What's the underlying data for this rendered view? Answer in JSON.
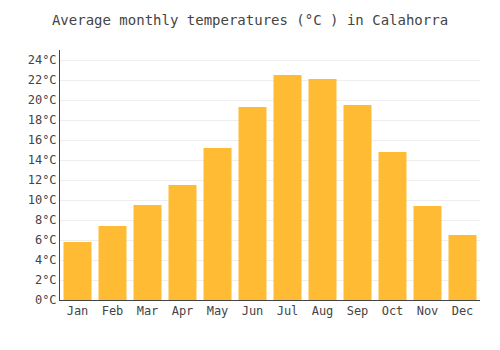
{
  "chart_data": {
    "type": "bar",
    "title": "Average monthly temperatures (°C ) in Calahorra",
    "categories": [
      "Jan",
      "Feb",
      "Mar",
      "Apr",
      "May",
      "Jun",
      "Jul",
      "Aug",
      "Sep",
      "Oct",
      "Nov",
      "Dec"
    ],
    "values": [
      5.8,
      7.4,
      9.5,
      11.5,
      15.2,
      19.3,
      22.5,
      22.1,
      19.5,
      14.8,
      9.4,
      6.5
    ],
    "color": "#FFBB33",
    "ylim": [
      0,
      25
    ],
    "yticks": [
      {
        "value": 0,
        "label": "0°C"
      },
      {
        "value": 2,
        "label": "2°C"
      },
      {
        "value": 4,
        "label": "4°C"
      },
      {
        "value": 6,
        "label": "6°C"
      },
      {
        "value": 8,
        "label": "8°C"
      },
      {
        "value": 10,
        "label": "10°C"
      },
      {
        "value": 12,
        "label": "12°C"
      },
      {
        "value": 14,
        "label": "14°C"
      },
      {
        "value": 16,
        "label": "16°C"
      },
      {
        "value": 18,
        "label": "18°C"
      },
      {
        "value": 20,
        "label": "20°C"
      },
      {
        "value": 22,
        "label": "22°C"
      },
      {
        "value": 24,
        "label": "24°C"
      }
    ],
    "grid": true
  }
}
